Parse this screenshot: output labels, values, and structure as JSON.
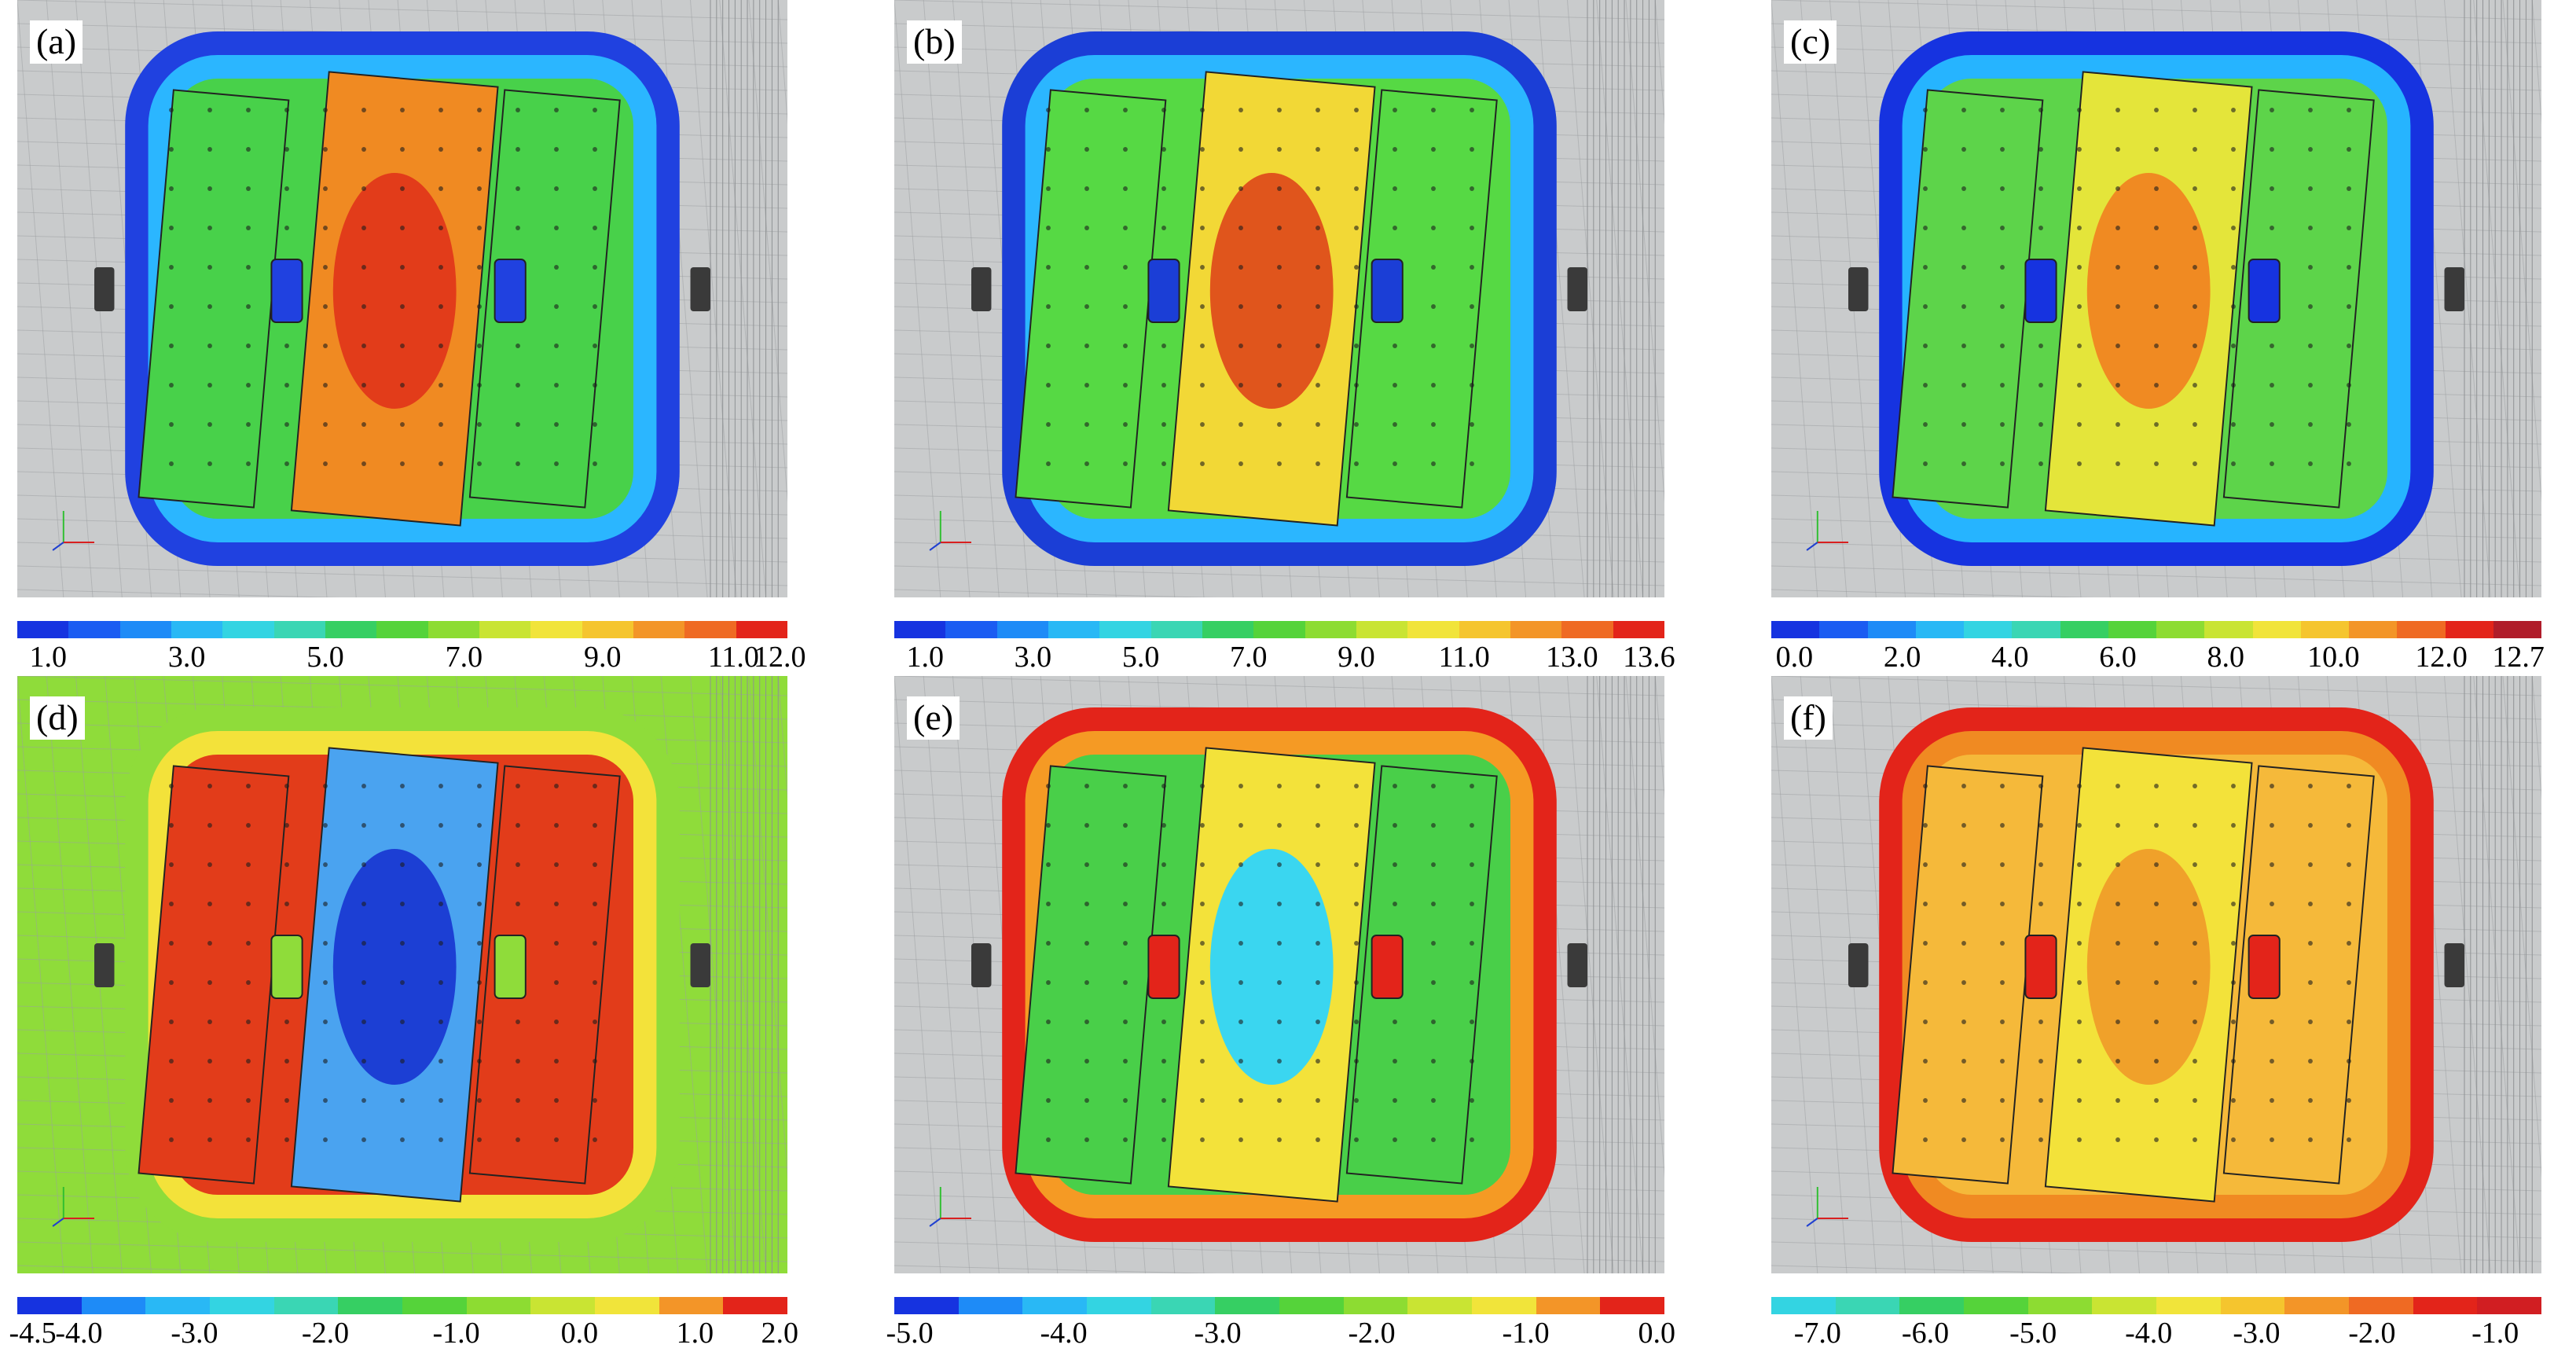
{
  "panels": [
    {
      "id": "a",
      "label": "(a)",
      "ticks": [
        "1.0",
        "3.0",
        "5.0",
        "7.0",
        "9.0",
        "11.0",
        "12.0"
      ],
      "colors": {
        "outer": "#2041e0",
        "ring": "#2bb6ff",
        "mid": "#48d14a",
        "hot": "#e23c1a",
        "hot2": "#f08a22",
        "bg": "#c9cbcc"
      }
    },
    {
      "id": "b",
      "label": "(b)",
      "ticks": [
        "1.0",
        "3.0",
        "5.0",
        "7.0",
        "9.0",
        "11.0",
        "13.0",
        "13.6"
      ],
      "colors": {
        "outer": "#1b3ed6",
        "ring": "#2bb6ff",
        "mid": "#56d944",
        "hot": "#e0551c",
        "hot2": "#f2d836",
        "bg": "#c9cbcc"
      }
    },
    {
      "id": "c",
      "label": "(c)",
      "ticks": [
        "0.0",
        "2.0",
        "4.0",
        "6.0",
        "8.0",
        "10.0",
        "12.0",
        "12.7"
      ],
      "colors": {
        "outer": "#1633e0",
        "ring": "#26b4ff",
        "mid": "#5dd44a",
        "hot": "#f08a22",
        "hot2": "#e4e53a",
        "bg": "#c9cbcc"
      }
    },
    {
      "id": "d",
      "label": "(d)",
      "ticks": [
        "-4.5",
        "-4.0",
        "-3.0",
        "-2.0",
        "-1.0",
        "0.0",
        "1.0",
        "2.0"
      ],
      "colors": {
        "outer": "#8fdc3a",
        "ring": "#f3e23a",
        "mid": "#e23c1a",
        "hot": "#1c3fd4",
        "hot2": "#4aa3f0",
        "bg": "#8fdc3a"
      }
    },
    {
      "id": "e",
      "label": "(e)",
      "ticks": [
        "-5.0",
        "-4.0",
        "-3.0",
        "-2.0",
        "-1.0",
        "0.0"
      ],
      "colors": {
        "outer": "#e3241a",
        "ring": "#f59a24",
        "mid": "#49cf49",
        "hot": "#3ad6f0",
        "hot2": "#f3e23a",
        "bg": "#c9cbcc"
      }
    },
    {
      "id": "f",
      "label": "(f)",
      "ticks": [
        "-7.0",
        "-6.0",
        "-5.0",
        "-4.0",
        "-3.0",
        "-2.0",
        "-1.0"
      ],
      "colors": {
        "outer": "#e3241a",
        "ring": "#f08a22",
        "mid": "#f5b93a",
        "hot": "#f0a12a",
        "hot2": "#f3e23a",
        "bg": "#c9cbcc"
      }
    }
  ],
  "colorbars": {
    "a": [
      "#1633e0",
      "#1b5cf2",
      "#1e8bf7",
      "#29b8f5",
      "#33d4e2",
      "#3ad6b4",
      "#36cf63",
      "#55d33a",
      "#8ddc32",
      "#c9e433",
      "#f1e43a",
      "#f5c52e",
      "#f39528",
      "#ef6a23",
      "#e3241a"
    ],
    "b": [
      "#1633e0",
      "#1b5cf2",
      "#1e8bf7",
      "#29b8f5",
      "#33d4e2",
      "#3ad6b4",
      "#36cf63",
      "#55d33a",
      "#8ddc32",
      "#c9e433",
      "#f1e43a",
      "#f5c52e",
      "#f39528",
      "#ef6a23",
      "#e3241a"
    ],
    "c": [
      "#1633e0",
      "#1b5cf2",
      "#1e8bf7",
      "#29b8f5",
      "#33d4e2",
      "#3ad6b4",
      "#36cf63",
      "#55d33a",
      "#8ddc32",
      "#c9e433",
      "#f1e43a",
      "#f5c52e",
      "#f39528",
      "#ef6a23",
      "#e3241a",
      "#b01c2a"
    ],
    "d": [
      "#1633e0",
      "#1e8bf7",
      "#29b8f5",
      "#33d4e2",
      "#3ad6b4",
      "#36cf63",
      "#55d33a",
      "#8ddc32",
      "#c9e433",
      "#f1e43a",
      "#f39528",
      "#e3241a"
    ],
    "e": [
      "#1633e0",
      "#1e8bf7",
      "#29b8f5",
      "#33d4e2",
      "#3ad6b4",
      "#36cf63",
      "#55d33a",
      "#8ddc32",
      "#c9e433",
      "#f1e43a",
      "#f39528",
      "#e3241a"
    ],
    "f": [
      "#33d4e2",
      "#3ad6b4",
      "#36cf63",
      "#55d33a",
      "#8ddc32",
      "#c9e433",
      "#f1e43a",
      "#f5c52e",
      "#f39528",
      "#ef6a23",
      "#e3241a",
      "#d11e22"
    ]
  }
}
